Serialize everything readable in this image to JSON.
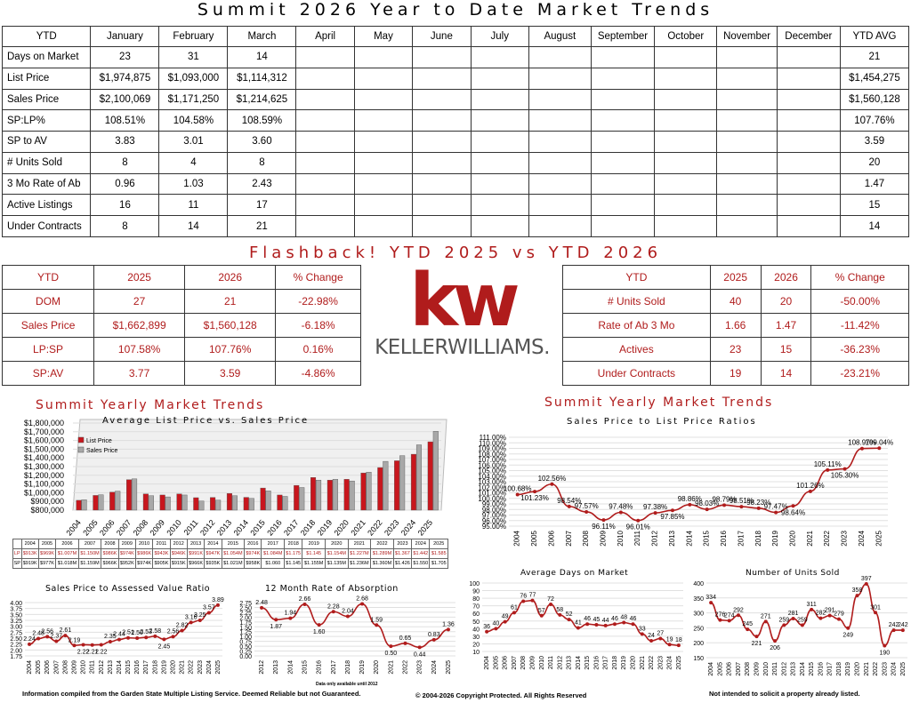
{
  "title": "Summit 2026 Year to Date Market Trends",
  "monthly": {
    "headers": [
      "YTD",
      "January",
      "February",
      "March",
      "April",
      "May",
      "June",
      "July",
      "August",
      "September",
      "October",
      "November",
      "December",
      "YTD AVG"
    ],
    "rows": [
      [
        "Days on Market",
        "23",
        "31",
        "14",
        "",
        "",
        "",
        "",
        "",
        "",
        "",
        "",
        "",
        "21"
      ],
      [
        "List Price",
        "$1,974,875",
        "$1,093,000",
        "$1,114,312",
        "",
        "",
        "",
        "",
        "",
        "",
        "",
        "",
        "",
        "$1,454,275"
      ],
      [
        "Sales Price",
        "$2,100,069",
        "$1,171,250",
        "$1,214,625",
        "",
        "",
        "",
        "",
        "",
        "",
        "",
        "",
        "",
        "$1,560,128"
      ],
      [
        "SP:LP%",
        "108.51%",
        "104.58%",
        "108.59%",
        "",
        "",
        "",
        "",
        "",
        "",
        "",
        "",
        "",
        "107.76%"
      ],
      [
        "SP to AV",
        "3.83",
        "3.01",
        "3.60",
        "",
        "",
        "",
        "",
        "",
        "",
        "",
        "",
        "",
        "3.59"
      ],
      [
        "# Units Sold",
        "8",
        "4",
        "8",
        "",
        "",
        "",
        "",
        "",
        "",
        "",
        "",
        "",
        "20"
      ],
      [
        "3 Mo Rate of Ab",
        "0.96",
        "1.03",
        "2.43",
        "",
        "",
        "",
        "",
        "",
        "",
        "",
        "",
        "",
        "1.47"
      ],
      [
        "Active Listings",
        "16",
        "11",
        "17",
        "",
        "",
        "",
        "",
        "",
        "",
        "",
        "",
        "",
        "15"
      ],
      [
        "Under Contracts",
        "8",
        "14",
        "21",
        "",
        "",
        "",
        "",
        "",
        "",
        "",
        "",
        "",
        "14"
      ]
    ]
  },
  "flashback_title": "Flashback!  YTD 2025 vs YTD 2026",
  "flash_left": {
    "headers": [
      "YTD",
      "2025",
      "2026",
      "% Change"
    ],
    "rows": [
      [
        "DOM",
        "27",
        "21",
        "-22.98%"
      ],
      [
        "Sales Price",
        "$1,662,899",
        "$1,560,128",
        "-6.18%"
      ],
      [
        "LP:SP",
        "107.58%",
        "107.76%",
        "0.16%"
      ],
      [
        "SP:AV",
        "3.77",
        "3.59",
        "-4.86%"
      ]
    ]
  },
  "flash_right": {
    "headers": [
      "YTD",
      "2025",
      "2026",
      "% Change"
    ],
    "rows": [
      [
        "# Units Sold",
        "40",
        "20",
        "-50.00%"
      ],
      [
        "Rate of Ab 3 Mo",
        "1.66",
        "1.47",
        "-11.42%"
      ],
      [
        "Actives",
        "23",
        "15",
        "-36.23%"
      ],
      [
        "Under Contracts",
        "19",
        "14",
        "-23.21%"
      ]
    ]
  },
  "logo": {
    "mark": "kw",
    "text": "KELLERWILLIAMS.",
    "color": "#b01c1c"
  },
  "section_left": "Summit Yearly Market Trends",
  "section_right": "Summit Yearly Market Trends",
  "chart_data": [
    {
      "type": "bar",
      "title": "Average List Price vs. Sales Price",
      "categories": [
        "2004",
        "2005",
        "2006",
        "2007",
        "2008",
        "2009",
        "2010",
        "2011",
        "2012",
        "2013",
        "2014",
        "2015",
        "2016",
        "2017",
        "2018",
        "2019",
        "2020",
        "2021",
        "2022",
        "2023",
        "2024",
        "2025"
      ],
      "series": [
        {
          "name": "List Price",
          "color": "#c8161d",
          "values": [
            913,
            969,
            1007,
            1150,
            986,
            974,
            986,
            943,
            946,
            991,
            947,
            1054,
            974,
            1084,
            1175,
            1145,
            1154,
            1227,
            1289,
            1367,
            1442,
            1585
          ]
        },
        {
          "name": "Sales Price",
          "color": "#a8a8a8",
          "values": [
            919,
            977,
            1018,
            1159,
            966,
            952,
            974,
            905,
            915,
            966,
            935,
            1021,
            958,
            1060,
            1145,
            1155,
            1135,
            1236,
            1360,
            1426,
            1550,
            1705
          ]
        }
      ],
      "ylim": [
        800,
        1800
      ],
      "ytick_labels": [
        "$800,000",
        "$900,000",
        "$1,000,000",
        "$1,100,000",
        "$1,200,000",
        "$1,300,000",
        "$1,400,000",
        "$1,500,000",
        "$1,600,000",
        "$1,700,000",
        "$1,800,000"
      ],
      "table_row_labels": [
        "LP",
        "SP"
      ],
      "table_lp": [
        "$913K",
        "$969K",
        "$1.007M",
        "$1.150M",
        "$986K",
        "$974K",
        "$986K",
        "$943K",
        "$946K",
        "$991K",
        "$947K",
        "$1.054M",
        "$974K",
        "$1.084M",
        "$1.175",
        "$1.145",
        "$1.154M",
        "$1.227M",
        "$1.289M",
        "$1.367",
        "$1.442",
        "$1.585"
      ],
      "table_sp": [
        "$919K",
        "$977K",
        "$1.018M",
        "$1.159M",
        "$966K",
        "$952K",
        "$974K",
        "$905K",
        "$915K",
        "$966K",
        "$935K",
        "$1.021M",
        "$958K",
        "$1.060",
        "$1.145",
        "$1.155M",
        "$1.135M",
        "$1.236M",
        "$1.360M",
        "$1.426",
        "$1.550",
        "$1.705"
      ]
    },
    {
      "type": "line",
      "title": "Sales Price to List Price Ratios",
      "x": [
        "2004",
        "2005",
        "2006",
        "2007",
        "2008",
        "2009",
        "2010",
        "2011",
        "2012",
        "2013",
        "2014",
        "2015",
        "2016",
        "2017",
        "2018",
        "2019",
        "2020",
        "2021",
        "2022",
        "2023",
        "2024",
        "2025"
      ],
      "values": [
        100.68,
        101.23,
        102.56,
        98.54,
        97.57,
        96.11,
        97.48,
        96.01,
        97.38,
        97.85,
        98.86,
        98.03,
        98.79,
        98.51,
        98.23,
        97.47,
        98.64,
        101.26,
        105.11,
        105.3,
        108.97,
        109.04
      ],
      "labels": [
        "100.68%",
        "101.23%",
        "102.56%",
        "98.54%",
        "97.57%",
        "96.11%",
        "97.48%",
        "96.01%",
        "97.38%",
        "97.85%",
        "98.86%",
        "98.03%",
        "98.79%",
        "98.51%",
        "98.23%",
        "97.47%",
        "98.64%",
        "101.26%",
        "105.11%",
        "105.30%",
        "108.97%",
        "109.04%"
      ],
      "ylim": [
        95,
        111
      ],
      "ytick_labels": [
        "95.00%",
        "96.00%",
        "97.00%",
        "98.00%",
        "99.00%",
        "100.00%",
        "101.00%",
        "102.00%",
        "103.00%",
        "104.00%",
        "105.00%",
        "106.00%",
        "107.00%",
        "108.00%",
        "109.00%",
        "110.00%",
        "111.00%"
      ]
    },
    {
      "type": "line",
      "title": "Sales Price to Assessed Value Ratio",
      "x": [
        "2004",
        "2005",
        "2006",
        "2007",
        "2008",
        "2009",
        "2010",
        "2011",
        "2012",
        "2013",
        "2014",
        "2015",
        "2016",
        "2017",
        "2018",
        "2019",
        "2020",
        "2021",
        "2022",
        "2023",
        "2024",
        "2025"
      ],
      "values": [
        2.24,
        2.48,
        2.56,
        2.37,
        2.61,
        2.19,
        2.22,
        2.21,
        2.22,
        2.35,
        2.44,
        2.51,
        2.5,
        2.53,
        2.58,
        2.45,
        2.56,
        2.82,
        3.16,
        3.25,
        3.57,
        3.89
      ],
      "labels": [
        "2.24",
        "2.48",
        "2.56",
        "2.37",
        "2.61",
        "2.19",
        "2.22",
        "2.21",
        "2.22",
        "2.35",
        "2.44",
        "2.51",
        "2.50",
        "2.53",
        "2.58",
        "2.45",
        "2.56",
        "2.82",
        "3.16",
        "3.25",
        "3.57",
        "3.89"
      ],
      "ylim": [
        1.75,
        4.0
      ],
      "ytick_labels": [
        "1.75",
        "2.00",
        "2.25",
        "2.50",
        "2.75",
        "3.00",
        "3.25",
        "3.50",
        "3.75",
        "4.00"
      ]
    },
    {
      "type": "line",
      "title": "12 Month Rate of Absorption",
      "x": [
        "2012",
        "2013",
        "2014",
        "2015",
        "2016",
        "2017",
        "2018",
        "2019",
        "2020",
        "2021",
        "2022",
        "2023",
        "2024",
        "2025"
      ],
      "values": [
        2.48,
        1.87,
        1.94,
        2.66,
        1.6,
        2.28,
        2.04,
        2.68,
        1.59,
        0.5,
        0.65,
        0.44,
        0.83,
        1.36
      ],
      "labels": [
        "2.48",
        "1.87",
        "1.94",
        "2.66",
        "1.60",
        "2.28",
        "2.04",
        "2.68",
        "1.59",
        "0.50",
        "0.65",
        "0.44",
        "0.83",
        "1.36"
      ],
      "ylim": [
        0,
        2.75
      ],
      "ytick_labels": [
        "0.00",
        "0.25",
        "0.50",
        "0.75",
        "1.00",
        "1.25",
        "1.50",
        "1.75",
        "2.00",
        "2.25",
        "2.50",
        "2.75"
      ],
      "note": "Data only available until 2012"
    },
    {
      "type": "line",
      "title": "Average Days on Market",
      "x": [
        "2004",
        "2005",
        "2006",
        "2007",
        "2008",
        "2009",
        "2010",
        "2011",
        "2012",
        "2013",
        "2014",
        "2015",
        "2016",
        "2017",
        "2018",
        "2019",
        "2020",
        "2021",
        "2022",
        "2023",
        "2024",
        "2025"
      ],
      "values": [
        36,
        40,
        49,
        61,
        76,
        77,
        57,
        72,
        58,
        52,
        41,
        46,
        45,
        44,
        46,
        48,
        46,
        33,
        24,
        27,
        19,
        18
      ],
      "ylim": [
        10,
        100
      ],
      "ytick_labels": [
        "10",
        "20",
        "30",
        "40",
        "50",
        "60",
        "70",
        "80",
        "90",
        "100"
      ]
    },
    {
      "type": "line",
      "title": "Number of Units Sold",
      "x": [
        "2004",
        "2005",
        "2006",
        "2007",
        "2008",
        "2009",
        "2010",
        "2011",
        "2012",
        "2013",
        "2014",
        "2015",
        "2016",
        "2017",
        "2018",
        "2019",
        "2020",
        "2021",
        "2022",
        "2023",
        "2024",
        "2025"
      ],
      "values": [
        334,
        276,
        274,
        292,
        245,
        221,
        271,
        206,
        259,
        281,
        259,
        311,
        282,
        291,
        279,
        249,
        358,
        397,
        301,
        190,
        242,
        242
      ],
      "ylim": [
        150,
        400
      ],
      "ytick_labels": [
        "150",
        "200",
        "250",
        "300",
        "350",
        "400"
      ]
    }
  ],
  "footer": {
    "left": "Information compiled from the Garden State Multiple Listing Service.  Deemed Reliable but not Guaranteed.",
    "center": "© 2004-2026 Copyright Protected.  All Rights Reserved",
    "right": "Not intended to solicit a property already listed."
  }
}
